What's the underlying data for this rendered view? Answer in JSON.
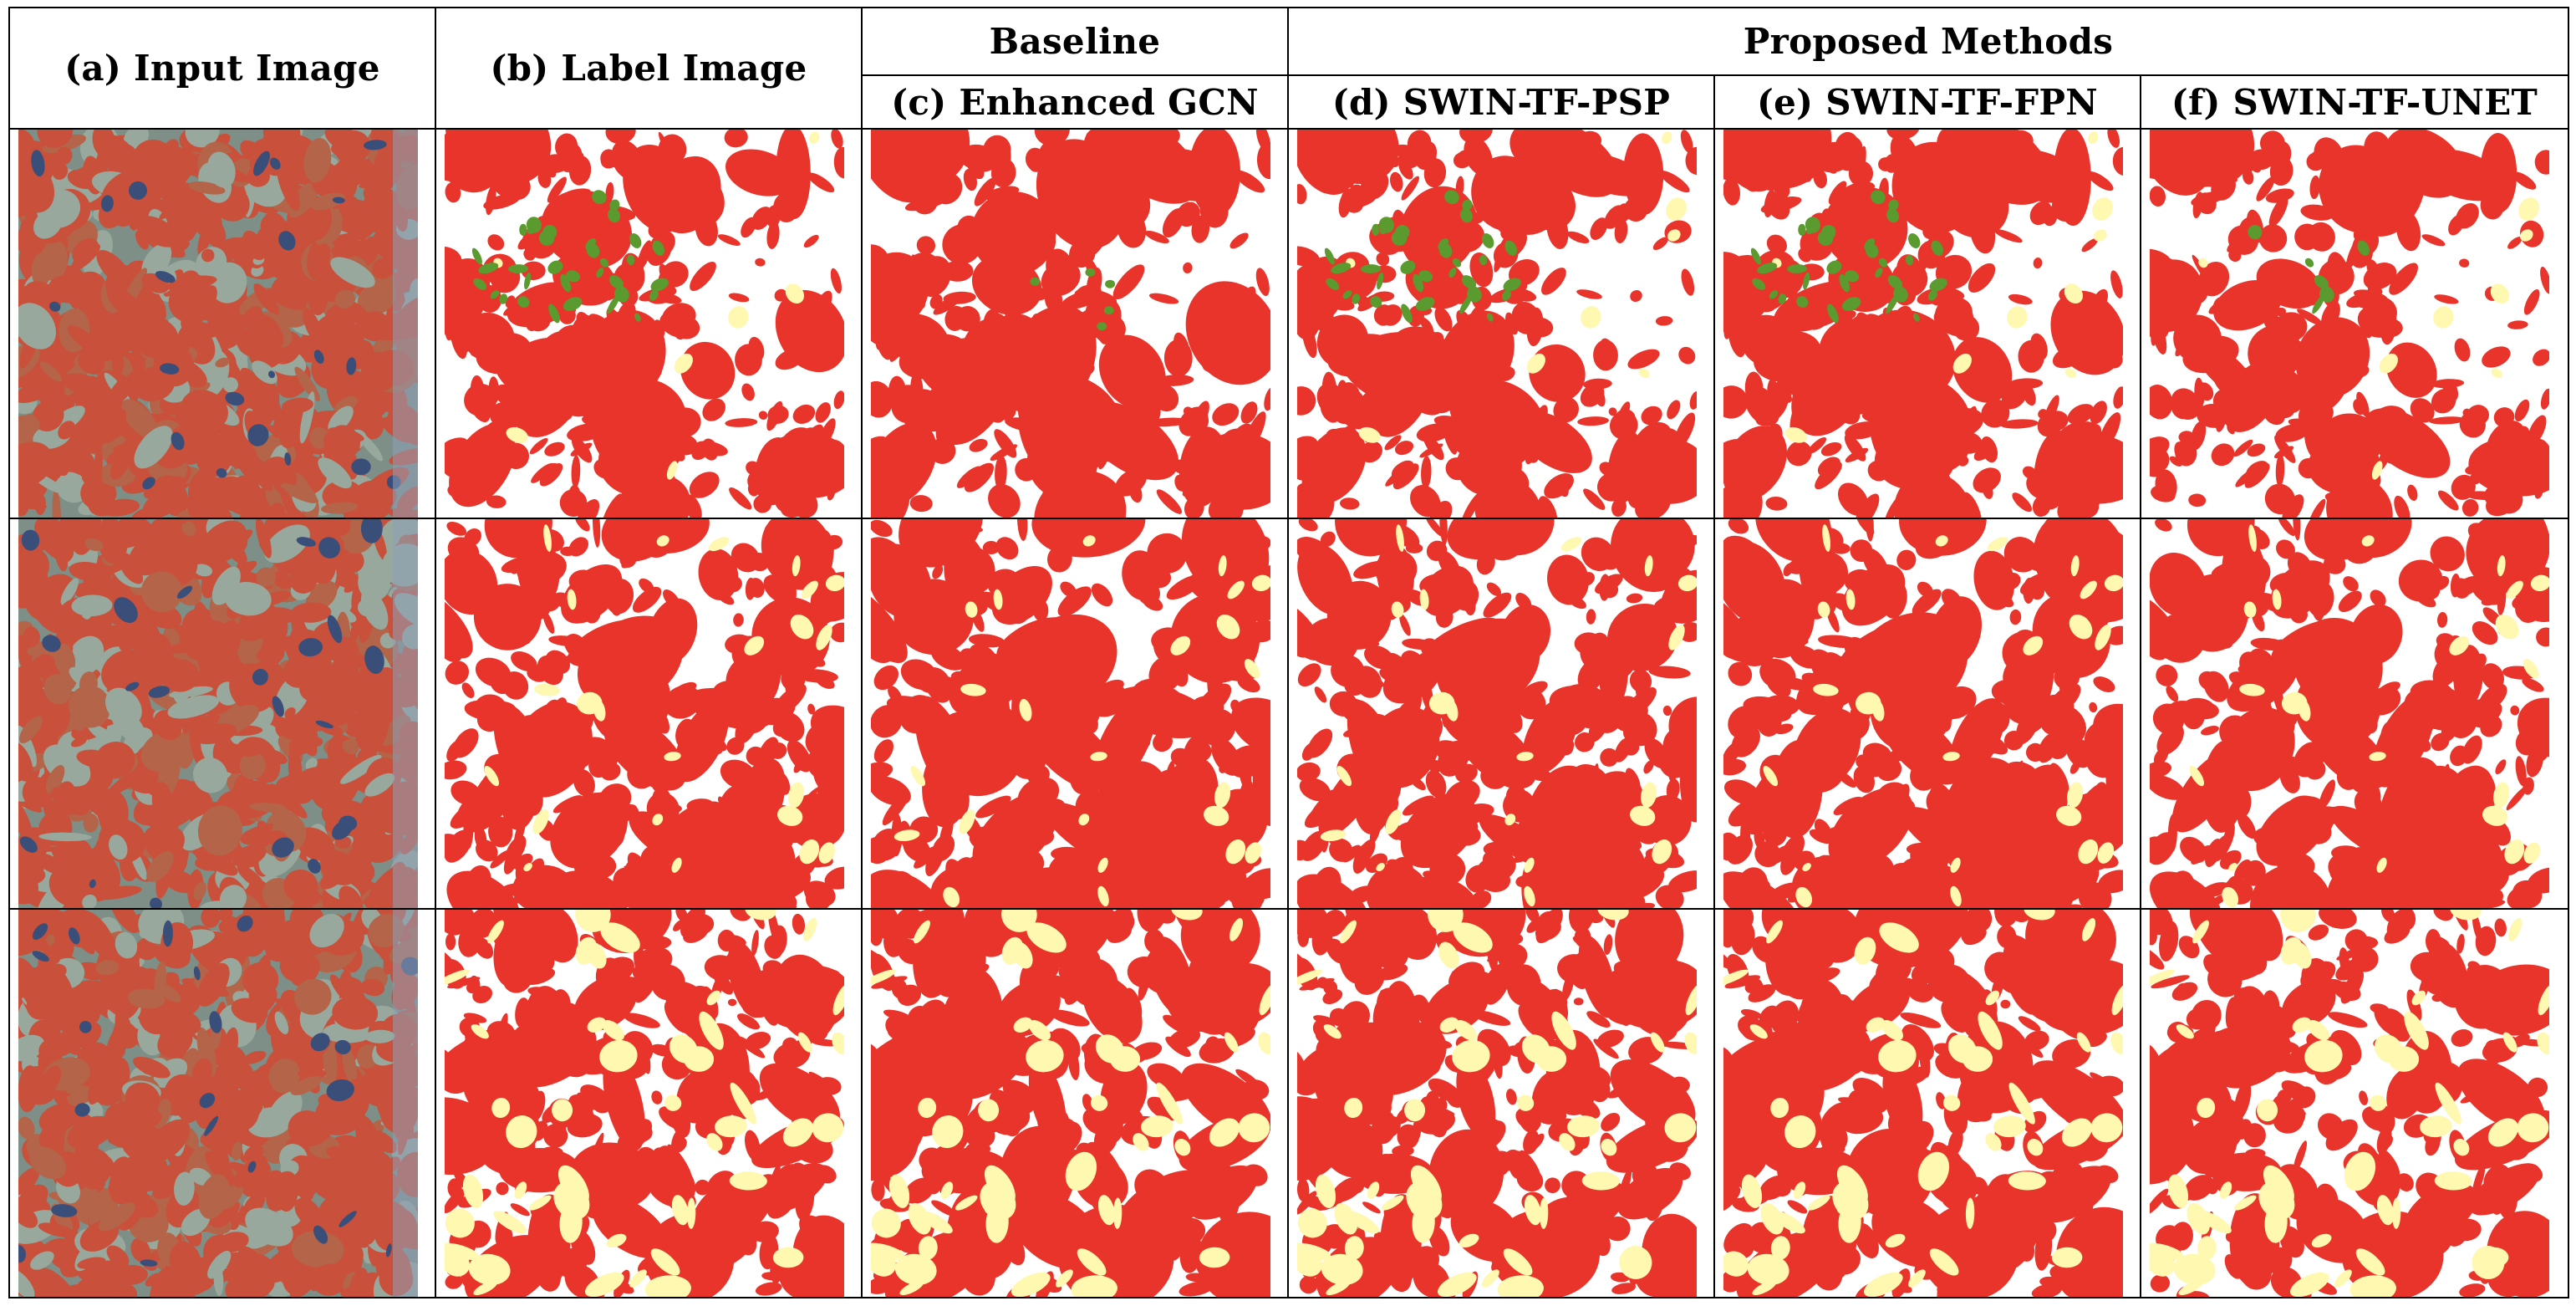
{
  "headers": {
    "input": "(a)  Input Image",
    "label": "(b)  Label Image",
    "baseline_group": "Baseline",
    "proposed_group": "Proposed Methods",
    "enhanced_gcn": "(c)  Enhanced GCN",
    "swin_psp": "(d)  SWIN-TF-PSP",
    "swin_fpn": "(e)  SWIN-TF-FPN",
    "swin_unet": "(f)  SWIN-TF-UNET"
  },
  "colors": {
    "class_red": "#e8342a",
    "class_green": "#5a9a2e",
    "class_yellow": "#fff8b0",
    "background": "#ffffff",
    "satellite_red": "#c9503a",
    "satellite_gray": "#7d8f86",
    "satellite_blue": "#3a4e7a"
  },
  "rows": 3,
  "columns": [
    "input",
    "label",
    "enhanced_gcn",
    "swin_psp",
    "swin_fpn",
    "swin_unet"
  ]
}
